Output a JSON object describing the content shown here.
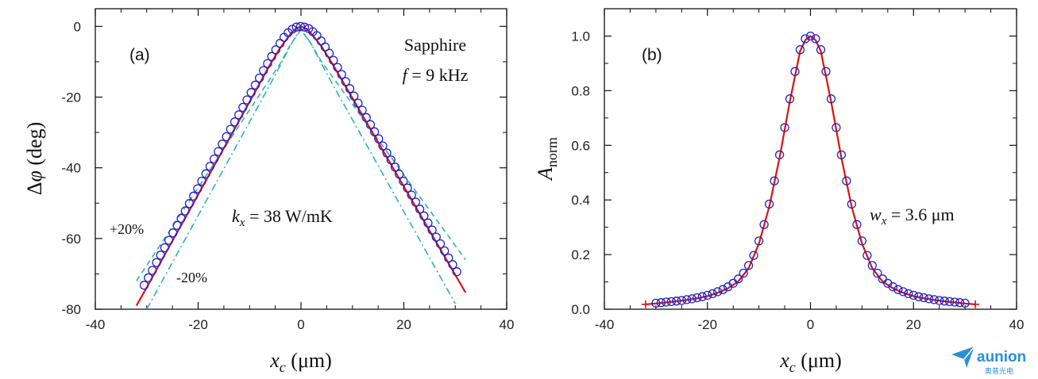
{
  "chart_data": [
    {
      "type": "scatter",
      "panel_label": "(a)",
      "annotations": {
        "material": "Sapphire",
        "frequency": "f = 9 kHz",
        "conductivity": "kx = 38 W/mK",
        "plus": "+20%",
        "minus": "-20%"
      },
      "xlabel": "xc (μm)",
      "ylabel": "Δφ (deg)",
      "xlim": [
        -40,
        40
      ],
      "ylim": [
        -80,
        5
      ],
      "xticks": [
        -40,
        -20,
        0,
        20,
        40
      ],
      "yticks": [
        0,
        -20,
        -40,
        -60,
        -80
      ],
      "grid": false,
      "colors": {
        "data": "#2323c8",
        "fit": "#dd1111",
        "bounds": "#2bb3b3"
      },
      "series": [
        {
          "kind": "markers",
          "marker": "open-circle",
          "x": [
            -30.5,
            -29.7,
            -28.9,
            -28.1,
            -27.3,
            -26.5,
            -25.7,
            -24.9,
            -24.1,
            -23.3,
            -22.5,
            -21.7,
            -20.9,
            -20.1,
            -19.3,
            -18.5,
            -17.7,
            -16.9,
            -16.1,
            -15.3,
            -14.5,
            -13.7,
            -12.9,
            -12.1,
            -11.3,
            -10.5,
            -9.7,
            -8.9,
            -8.1,
            -7.3,
            -6.5,
            -5.7,
            -4.9,
            -4.1,
            -3.3,
            -2.5,
            -1.7,
            -0.9,
            -0.1,
            0.7,
            1.5,
            2.3,
            3.1,
            3.9,
            4.7,
            5.5,
            6.3,
            7.1,
            7.9,
            8.7,
            9.5,
            10.3,
            11.1,
            11.9,
            12.7,
            13.5,
            14.3,
            15.1,
            15.9,
            16.7,
            17.5,
            18.3,
            19.1,
            19.9,
            20.7,
            21.5,
            22.3,
            23.1,
            23.9,
            24.7,
            25.5,
            26.3,
            27.1,
            27.9,
            28.7,
            29.5,
            30.3
          ],
          "y": [
            -73.2,
            -71.1,
            -69.0,
            -66.8,
            -64.7,
            -62.6,
            -60.5,
            -58.4,
            -56.3,
            -54.3,
            -52.2,
            -50.1,
            -48.0,
            -45.9,
            -43.8,
            -41.7,
            -39.6,
            -37.5,
            -35.4,
            -33.3,
            -31.2,
            -29.1,
            -27.0,
            -25.0,
            -22.9,
            -20.8,
            -18.7,
            -16.6,
            -14.6,
            -12.5,
            -10.5,
            -8.5,
            -6.6,
            -4.8,
            -3.1,
            -1.8,
            -0.8,
            -0.2,
            0.0,
            -0.2,
            -0.6,
            -1.5,
            -2.6,
            -4.1,
            -5.8,
            -7.6,
            -9.6,
            -11.6,
            -13.6,
            -15.6,
            -17.6,
            -19.7,
            -21.7,
            -23.7,
            -25.8,
            -27.8,
            -29.8,
            -31.8,
            -33.8,
            -35.8,
            -37.8,
            -39.8,
            -41.8,
            -43.8,
            -45.7,
            -47.7,
            -49.7,
            -51.7,
            -53.6,
            -55.6,
            -57.6,
            -59.6,
            -61.5,
            -63.5,
            -65.5,
            -67.4,
            -69.4
          ]
        },
        {
          "kind": "line",
          "style": "solid",
          "x": [
            -32,
            -30,
            -26,
            -22,
            -18,
            -14,
            -10,
            -6,
            -4,
            -2,
            -1,
            0,
            1,
            2,
            4,
            6,
            10,
            14,
            18,
            22,
            26,
            30,
            32
          ],
          "y": [
            -79.0,
            -73.8,
            -63.3,
            -52.8,
            -42.3,
            -31.8,
            -21.3,
            -10.8,
            -6.0,
            -2.1,
            -0.6,
            0.0,
            -0.6,
            -2.0,
            -5.7,
            -10.3,
            -20.3,
            -30.3,
            -40.3,
            -50.3,
            -60.3,
            -70.3,
            -75.3
          ]
        },
        {
          "kind": "line",
          "style": "dashed",
          "x": [
            -32,
            -28,
            -24,
            -20,
            -16,
            -12,
            -8,
            -4,
            -2,
            0,
            2,
            4,
            8,
            12,
            16,
            20,
            24,
            28,
            32
          ],
          "y": [
            -72.0,
            -63.2,
            -54.4,
            -45.6,
            -36.8,
            -28.0,
            -19.2,
            -10.4,
            -5.0,
            -1.0,
            -5.0,
            -10.0,
            -18.0,
            -26.0,
            -34.0,
            -42.0,
            -50.0,
            -58.0,
            -66.0
          ]
        },
        {
          "kind": "line",
          "style": "dashdot",
          "x": [
            -30,
            -26,
            -22,
            -18,
            -14,
            -10,
            -6,
            -4,
            -2,
            0,
            2,
            4,
            6,
            10,
            14,
            18,
            22,
            26,
            30
          ],
          "y": [
            -80.0,
            -69.4,
            -58.8,
            -48.2,
            -37.6,
            -27.0,
            -16.4,
            -11.0,
            -5.2,
            -0.6,
            -5.0,
            -10.6,
            -16.0,
            -26.4,
            -36.8,
            -47.2,
            -57.6,
            -68.0,
            -78.4
          ]
        }
      ]
    },
    {
      "type": "scatter",
      "panel_label": "(b)",
      "annotations": {
        "width": "wx = 3.6 μm"
      },
      "xlabel": "xc (μm)",
      "ylabel": "Anorm",
      "xlim": [
        -40,
        40
      ],
      "ylim": [
        0,
        1.1
      ],
      "xticks": [
        -40,
        -20,
        0,
        20,
        40
      ],
      "yticks": [
        0.0,
        0.2,
        0.4,
        0.6,
        0.8,
        1.0
      ],
      "grid": false,
      "colors": {
        "data": "#2323c8",
        "fit": "#dd1111"
      },
      "series": [
        {
          "kind": "markers",
          "marker": "open-circle",
          "x": [
            -30,
            -29,
            -28,
            -27,
            -26,
            -25,
            -24,
            -23,
            -22,
            -21,
            -20,
            -19,
            -18,
            -17,
            -16,
            -15,
            -14,
            -13,
            -12,
            -11,
            -10,
            -9,
            -8,
            -7,
            -6,
            -5,
            -4,
            -3,
            -2,
            -1,
            0,
            1,
            2,
            3,
            4,
            5,
            6,
            7,
            8,
            9,
            10,
            11,
            12,
            13,
            14,
            15,
            16,
            17,
            18,
            19,
            20,
            21,
            22,
            23,
            24,
            25,
            26,
            27,
            28,
            29,
            30
          ],
          "y": [
            0.022,
            0.024,
            0.026,
            0.028,
            0.03,
            0.032,
            0.035,
            0.038,
            0.042,
            0.046,
            0.051,
            0.057,
            0.064,
            0.072,
            0.082,
            0.095,
            0.111,
            0.132,
            0.16,
            0.197,
            0.25,
            0.31,
            0.385,
            0.47,
            0.565,
            0.665,
            0.77,
            0.87,
            0.95,
            0.99,
            1.0,
            0.99,
            0.95,
            0.87,
            0.77,
            0.665,
            0.565,
            0.47,
            0.385,
            0.31,
            0.25,
            0.197,
            0.16,
            0.132,
            0.111,
            0.095,
            0.082,
            0.072,
            0.064,
            0.057,
            0.051,
            0.046,
            0.042,
            0.038,
            0.035,
            0.032,
            0.03,
            0.028,
            0.026,
            0.024,
            0.022
          ]
        },
        {
          "kind": "line",
          "style": "solid",
          "endcaps": "plus",
          "x": [
            -32,
            -30,
            -28,
            -26,
            -24,
            -22,
            -20,
            -18,
            -16,
            -14,
            -12,
            -10,
            -8,
            -6,
            -4,
            -2,
            -1,
            0,
            1,
            2,
            4,
            6,
            8,
            10,
            12,
            14,
            16,
            18,
            20,
            22,
            24,
            26,
            28,
            30,
            32
          ],
          "y": [
            0.018,
            0.021,
            0.025,
            0.029,
            0.034,
            0.04,
            0.048,
            0.06,
            0.077,
            0.102,
            0.15,
            0.24,
            0.375,
            0.555,
            0.76,
            0.945,
            0.985,
            1.0,
            0.985,
            0.945,
            0.76,
            0.555,
            0.375,
            0.24,
            0.15,
            0.102,
            0.077,
            0.06,
            0.048,
            0.04,
            0.034,
            0.029,
            0.025,
            0.021,
            0.018
          ]
        }
      ]
    }
  ],
  "watermark": {
    "brand": "aunion",
    "subtitle": "奥普光电",
    "color": "#2a8fd8"
  }
}
